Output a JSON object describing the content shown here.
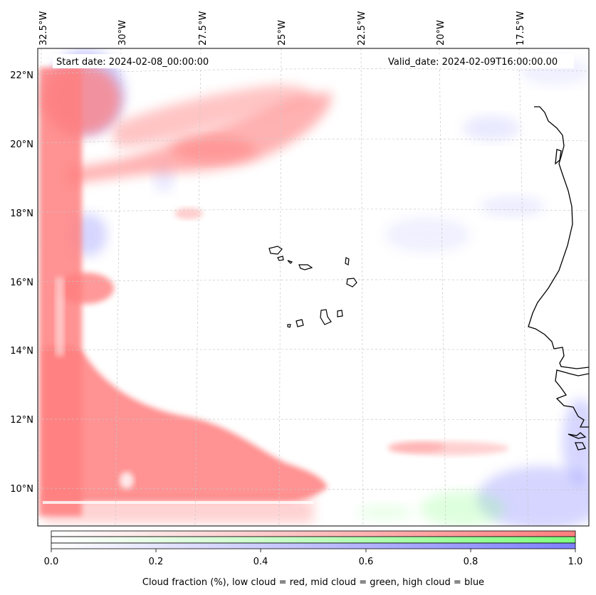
{
  "map": {
    "start_date": "Start date: 2024-02-08_00:00:00",
    "valid_date": "Valid_date: 2024-02-09T16:00:00.00",
    "lon_labels": [
      "32.5°W",
      "30°W",
      "27.5°W",
      "25°W",
      "22.5°W",
      "20°W",
      "17.5°W"
    ],
    "lat_labels": [
      "22°N",
      "20°N",
      "18°N",
      "16°N",
      "14°N",
      "12°N",
      "10°N"
    ]
  },
  "colorbar": {
    "ticks": [
      "0.0",
      "0.2",
      "0.4",
      "0.6",
      "0.8",
      "1.0"
    ],
    "title": "Cloud fraction (%), low cloud = red, mid cloud = green, high cloud = blue",
    "colors": {
      "low": "#ff7f7f",
      "mid": "#7fff7f",
      "high": "#7f7fff"
    }
  }
}
